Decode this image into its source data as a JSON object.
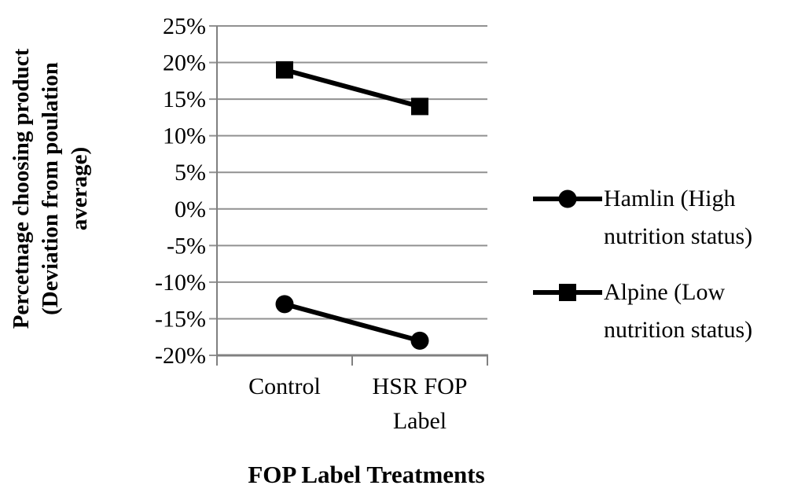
{
  "chart_data": {
    "type": "line",
    "categories": [
      "Control",
      "HSR FOP Label"
    ],
    "series": [
      {
        "name": "Hamlin (High nutrition status)",
        "marker": "circle",
        "values": [
          -13,
          -18
        ]
      },
      {
        "name": "Alpine (Low nutrition status)",
        "marker": "square",
        "values": [
          19,
          14
        ]
      }
    ],
    "title": "",
    "xlabel": "FOP Label Treatments",
    "ylabel": "Percetnage choosing product (Deviation from poulation average)",
    "ylabel_lines": [
      "Percetnage choosing product",
      "(Deviation from poulation",
      "average)"
    ],
    "ylim": [
      -20,
      25
    ],
    "ytick_step": 5,
    "ytick_values": [
      25,
      20,
      15,
      10,
      5,
      0,
      -5,
      -10,
      -15,
      -20
    ],
    "ytick_labels": [
      "25%",
      "20%",
      "15%",
      "10%",
      "5%",
      "0%",
      "-5%",
      "-10%",
      "-15%",
      "-20%"
    ],
    "grid": true,
    "legend_position": "right",
    "colors": {
      "series": "#000000",
      "gridline": "#919191",
      "axis": "#808080",
      "text": "#000000"
    }
  }
}
